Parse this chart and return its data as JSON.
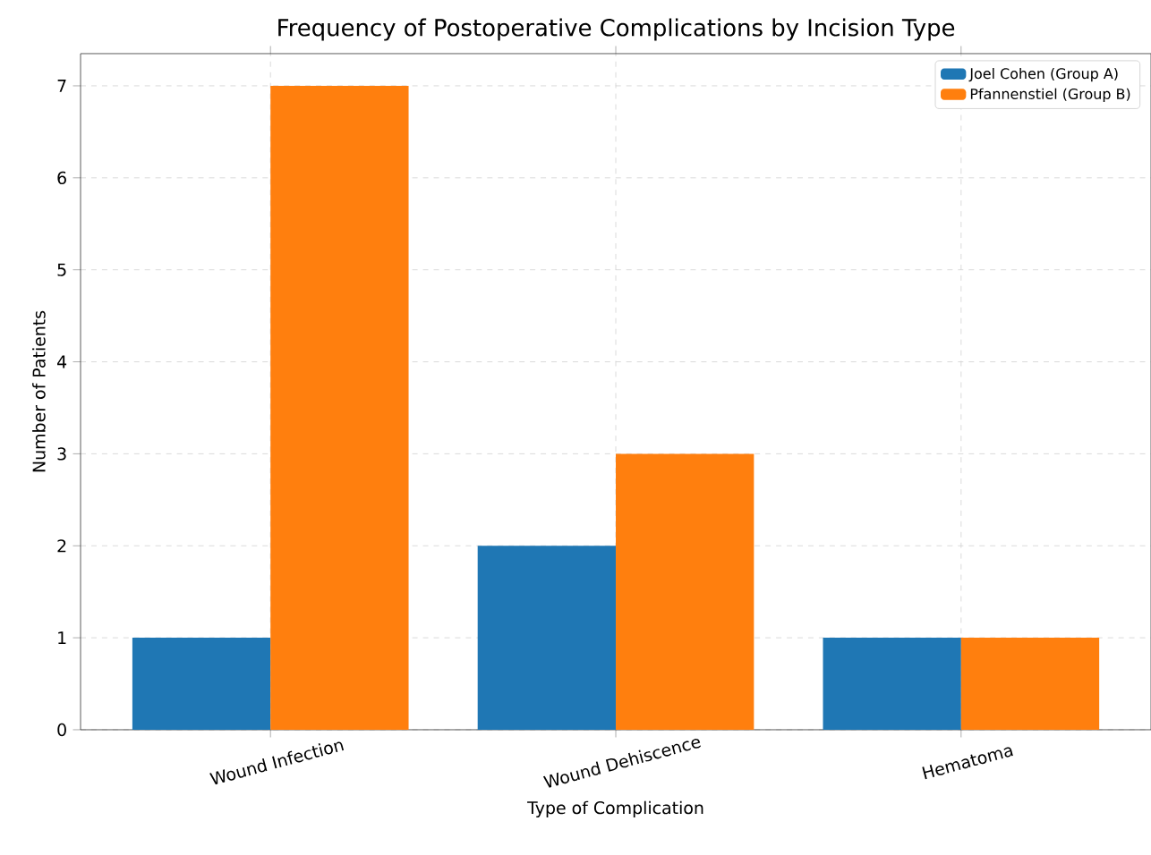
{
  "chart_data": {
    "type": "bar",
    "title": "Frequency of Postoperative Complications by Incision Type",
    "xlabel": "Type of Complication",
    "ylabel": "Number of Patients",
    "categories": [
      "Wound Infection",
      "Wound Dehiscence",
      "Hematoma"
    ],
    "series": [
      {
        "name": "Joel Cohen (Group A)",
        "color": "#1f77b4",
        "values": [
          1,
          2,
          1
        ]
      },
      {
        "name": "Pfannenstiel (Group B)",
        "color": "#ff7f0e",
        "values": [
          7,
          3,
          1
        ]
      }
    ],
    "ylim": [
      0,
      7.35
    ],
    "yticks": [
      0,
      1,
      2,
      3,
      4,
      5,
      6,
      7
    ],
    "grid": true,
    "legend": "top right"
  }
}
